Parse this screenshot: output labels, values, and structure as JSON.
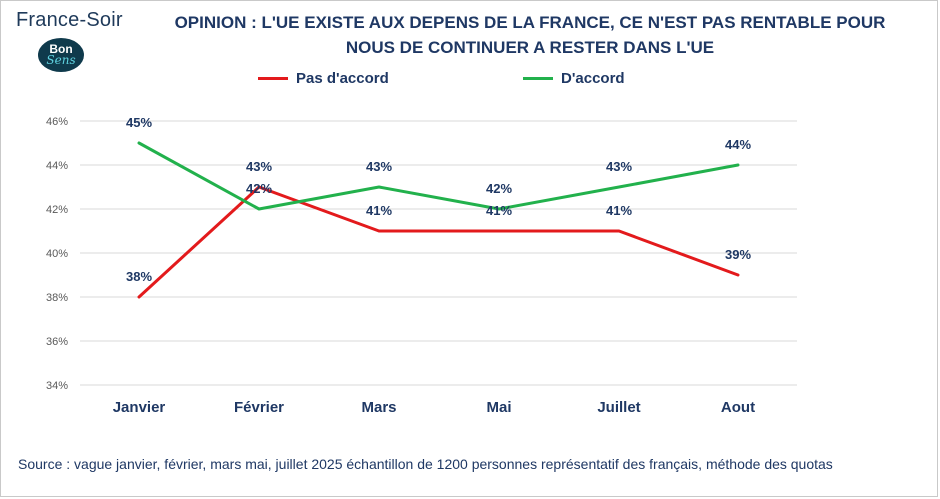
{
  "brand": {
    "left": "France",
    "sep": "-",
    "right": "Soir"
  },
  "logo": {
    "top": "Bon",
    "bottom": "Sens"
  },
  "title": {
    "line1": "OPINION : L'UE EXISTE AUX DEPENS DE LA FRANCE, CE N'EST PAS RENTABLE POUR",
    "line2": "NOUS DE CONTINUER A RESTER DANS L'UE"
  },
  "source": "Source : vague janvier, février, mars  mai, juillet 2025 échantillon de 1200 personnes représentatif des français, méthode des quotas",
  "colors": {
    "pas_accord": "#e31a1c",
    "accord": "#22b14c",
    "text": "#1f3864",
    "grid": "#d9d9d9"
  },
  "chart_data": {
    "type": "line",
    "categories": [
      "Janvier",
      "Février",
      "Mars",
      "Mai",
      "Juillet",
      "Aout"
    ],
    "series": [
      {
        "name": "Pas d'accord",
        "values": [
          38,
          43,
          41,
          41,
          41,
          39
        ],
        "color": "#e31a1c",
        "labels": [
          "38%",
          "43%",
          "41%",
          "41%",
          "41%",
          "39%"
        ]
      },
      {
        "name": "D'accord",
        "values": [
          45,
          42,
          43,
          42,
          43,
          44
        ],
        "color": "#22b14c",
        "labels": [
          "45%",
          "42%",
          "43%",
          "42%",
          "43%",
          "44%"
        ]
      }
    ],
    "yticks": [
      "34%",
      "36%",
      "38%",
      "40%",
      "42%",
      "44%",
      "46%"
    ],
    "ylim": [
      34,
      46
    ],
    "grid": true,
    "legend_position": "top"
  }
}
